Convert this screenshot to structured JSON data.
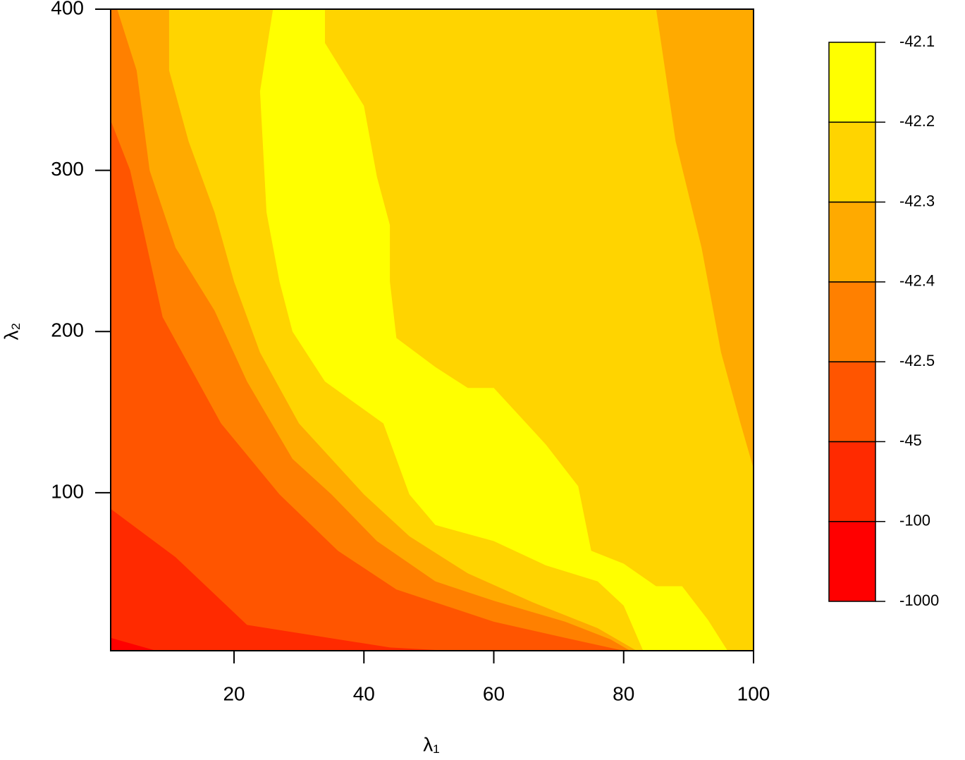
{
  "chart_data": {
    "type": "contour",
    "xlabel": "λ₁",
    "ylabel": "λ₂",
    "xlim": [
      1,
      100
    ],
    "ylim": [
      2,
      400
    ],
    "xticks": [
      20,
      40,
      60,
      80,
      100
    ],
    "yticks": [
      100,
      200,
      300,
      400
    ],
    "levels": [
      -1000,
      -100,
      -45,
      -42.5,
      -42.4,
      -42.3,
      -42.2,
      -42.1
    ],
    "colors": [
      "#ff0000",
      "#ff2a00",
      "#ff5500",
      "#ff8000",
      "#ffaa00",
      "#ffd400",
      "#ffff00"
    ],
    "regions": [
      [
        [
          1,
          10
        ],
        [
          8,
          2
        ],
        [
          100,
          2
        ],
        [
          100,
          400
        ],
        [
          1,
          400
        ]
      ],
      [
        [
          1,
          90
        ],
        [
          11,
          60
        ],
        [
          22,
          18
        ],
        [
          44,
          4
        ],
        [
          53,
          2
        ],
        [
          100,
          2
        ],
        [
          100,
          400
        ],
        [
          1,
          400
        ]
      ],
      [
        [
          1,
          331
        ],
        [
          4,
          300
        ],
        [
          9,
          209
        ],
        [
          18,
          143
        ],
        [
          27,
          99
        ],
        [
          36,
          64
        ],
        [
          45,
          40
        ],
        [
          60,
          20
        ],
        [
          71,
          10
        ],
        [
          80,
          2
        ],
        [
          100,
          2
        ],
        [
          100,
          400
        ],
        [
          1,
          400
        ]
      ],
      [
        [
          2,
          400
        ],
        [
          5,
          362
        ],
        [
          7,
          300
        ],
        [
          11,
          252
        ],
        [
          17,
          213
        ],
        [
          22,
          169
        ],
        [
          29,
          121
        ],
        [
          35,
          99
        ],
        [
          42,
          70
        ],
        [
          51,
          45
        ],
        [
          60,
          33
        ],
        [
          71,
          20
        ],
        [
          78,
          9
        ],
        [
          81,
          2
        ],
        [
          100,
          2
        ],
        [
          100,
          400
        ]
      ],
      [
        [
          10,
          400
        ],
        [
          10,
          362
        ],
        [
          13,
          318
        ],
        [
          17,
          274
        ],
        [
          20,
          231
        ],
        [
          24,
          187
        ],
        [
          30,
          143
        ],
        [
          40,
          99
        ],
        [
          47,
          73
        ],
        [
          56,
          50
        ],
        [
          66,
          32
        ],
        [
          76,
          16
        ],
        [
          82,
          2
        ],
        [
          100,
          2
        ],
        [
          100,
          115
        ],
        [
          98,
          143
        ],
        [
          95,
          187
        ],
        [
          92,
          252
        ],
        [
          88,
          318
        ],
        [
          85,
          400
        ]
      ],
      [
        [
          26,
          400
        ],
        [
          24,
          349
        ],
        [
          25,
          274
        ],
        [
          27,
          231
        ],
        [
          29,
          200
        ],
        [
          34,
          169
        ],
        [
          43,
          143
        ],
        [
          47,
          99
        ],
        [
          51,
          80
        ],
        [
          60,
          70
        ],
        [
          68,
          55
        ],
        [
          76,
          45
        ],
        [
          80,
          30
        ],
        [
          83,
          2
        ],
        [
          96,
          2
        ],
        [
          93,
          21
        ],
        [
          89,
          42
        ],
        [
          85,
          42
        ],
        [
          80,
          56
        ],
        [
          75,
          64
        ],
        [
          73,
          104
        ],
        [
          68,
          130
        ],
        [
          60,
          165
        ],
        [
          56,
          165
        ],
        [
          51,
          178
        ],
        [
          45,
          196
        ],
        [
          44,
          231
        ],
        [
          44,
          266
        ],
        [
          42,
          296
        ],
        [
          40,
          340
        ],
        [
          34,
          379
        ],
        [
          34,
          400
        ]
      ]
    ]
  }
}
